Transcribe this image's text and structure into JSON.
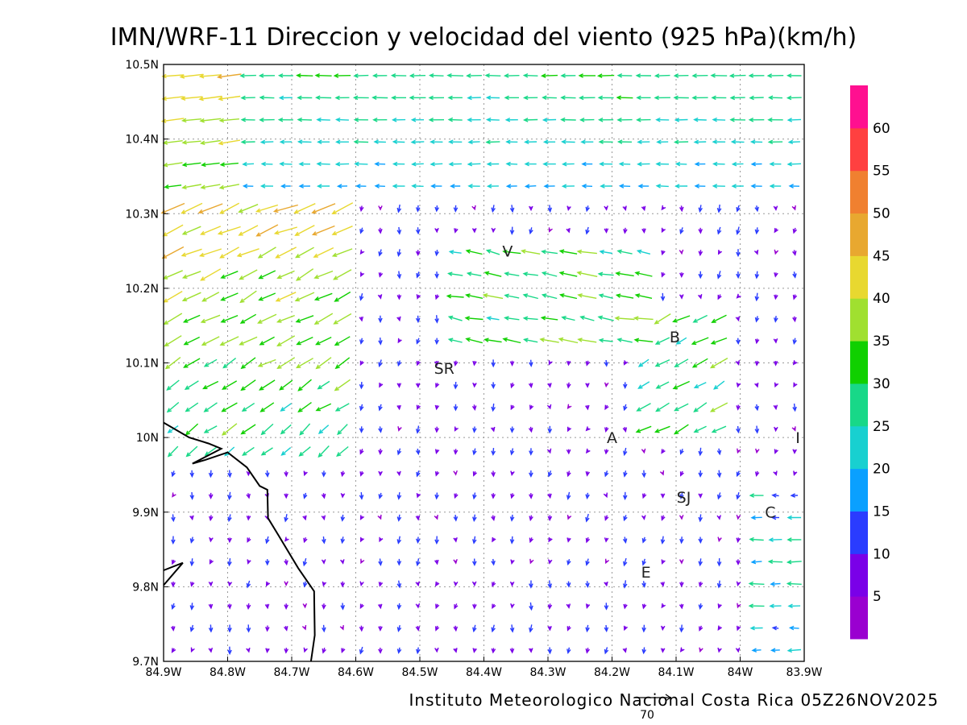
{
  "title": "IMN/WRF-11 Direccion y velocidad del viento (925 hPa)(km/h)",
  "footer": "Instituto Meteorologico Nacional Costa Rica 05Z26NOV2025",
  "reference_vector_label": "70",
  "axes": {
    "lon_ticks": [
      "84.9W",
      "84.8W",
      "84.7W",
      "84.6W",
      "84.5W",
      "84.4W",
      "84.3W",
      "84.2W",
      "84.1W",
      "84W",
      "83.9W"
    ],
    "lat_ticks": [
      "10.5N",
      "10.4N",
      "10.3N",
      "10.2N",
      "10.1N",
      "10N",
      "9.9N",
      "9.8N",
      "9.7N"
    ],
    "lon_range": [
      -84.9,
      -83.9
    ],
    "lat_range": [
      9.7,
      10.5
    ]
  },
  "colorbar": {
    "labels": [
      "5",
      "10",
      "15",
      "20",
      "25",
      "30",
      "35",
      "40",
      "45",
      "50",
      "55",
      "60"
    ],
    "colors": [
      "#9a00d0",
      "#7a00e8",
      "#2a3cff",
      "#0aa0ff",
      "#18d0d0",
      "#18d888",
      "#10d000",
      "#a0e030",
      "#e8d830",
      "#e8a830",
      "#f08030",
      "#ff4040",
      "#ff1090"
    ]
  },
  "places": [
    {
      "label": "V",
      "lon": -84.363,
      "lat": 10.25
    },
    {
      "label": "SR",
      "lon": -84.462,
      "lat": 10.093
    },
    {
      "label": "B",
      "lon": -84.102,
      "lat": 10.135
    },
    {
      "label": "A",
      "lon": -84.2,
      "lat": 10.0
    },
    {
      "label": "I",
      "lon": -83.91,
      "lat": 10.0
    },
    {
      "label": "SJ",
      "lon": -84.088,
      "lat": 9.92
    },
    {
      "label": "C",
      "lon": -83.953,
      "lat": 9.9
    },
    {
      "label": "E",
      "lon": -84.147,
      "lat": 9.82
    }
  ],
  "coastline_lonlat": [
    [
      [
        -84.9,
        10.02
      ],
      [
        -84.86,
        10.0
      ],
      [
        -84.83,
        9.992
      ],
      [
        -84.81,
        9.985
      ],
      [
        -84.855,
        9.965
      ],
      [
        -84.835,
        9.97
      ],
      [
        -84.8,
        9.98
      ],
      [
        -84.77,
        9.96
      ],
      [
        -84.75,
        9.935
      ],
      [
        -84.738,
        9.93
      ],
      [
        -84.737,
        9.892
      ],
      [
        -84.72,
        9.868
      ],
      [
        -84.69,
        9.825
      ],
      [
        -84.665,
        9.794
      ],
      [
        -84.664,
        9.735
      ],
      [
        -84.67,
        9.7
      ]
    ],
    [
      [
        -84.9,
        9.822
      ],
      [
        -84.87,
        9.832
      ],
      [
        -84.9,
        9.802
      ]
    ]
  ]
}
